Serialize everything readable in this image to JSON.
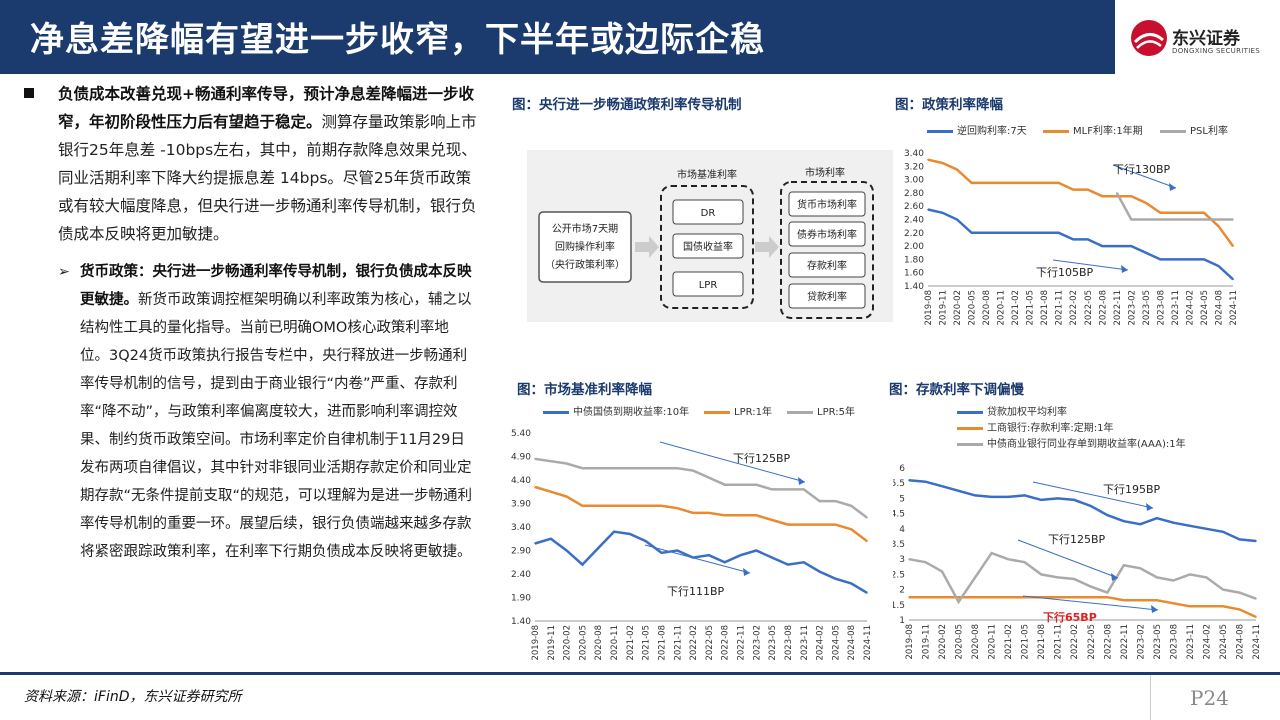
{
  "header": {
    "title": "净息差降幅有望进一步收窄，下半年或边际企稳",
    "logo_cn": "东兴证券",
    "logo_en": "DONGXING SECURITIES"
  },
  "left": {
    "bullet_bold": "负债成本改善兑现+畅通利率传导，预计净息差降幅进一步收窄，年初阶段性压力后有望趋于稳定。",
    "bullet_rest": "测算存量政策影响上市银行25年息差 -10bps左右，其中，前期存款降息效果兑现、同业活期利率下降大约提振息差 14bps。尽管25年货币政策或有较大幅度降息，但央行进一步畅通利率传导机制，银行负债成本反映将更加敏捷。",
    "sub_marker": "➢",
    "sub_bold": "货币政策：央行进一步畅通利率传导机制，银行负债成本反映更敏捷。",
    "sub_rest": "新货币政策调控框架明确以利率政策为核心，辅之以结构性工具的量化指导。当前已明确OMO核心政策利率地位。3Q24货币政策执行报告专栏中，央行释放进一步畅通利率传导机制的信号，提到由于商业银行“内卷”严重、存款利率“降不动”，与政策利率偏离度较大，进而影响利率调控效果、制约货币政策空间。市场利率定价自律机制于11月29日发布两项自律倡议，其中针对非银同业活期存款定价和同业定期存款“无条件提前支取“的规范，可以理解为是进一步畅通利率传导机制的重要一环。展望后续，银行负债端越来越多存款将紧密跟踪政策利率，在利率下行期负债成本反映将更敏捷。"
  },
  "diagram": {
    "title": "图：央行进一步畅通政策利率传导机制",
    "source_lines": [
      "公开市场7天期",
      "回购操作利率",
      "（央行政策利率）"
    ],
    "group1_label": "市场基准利率",
    "group1_items": [
      "DR",
      "国债收益率",
      "LPR"
    ],
    "group2_label": "市场利率",
    "group2_items": [
      "货币市场利率",
      "债券市场利率",
      "存款利率",
      "贷款利率"
    ]
  },
  "charts": {
    "c1": {
      "title": "图：政策利率降幅",
      "legend": [
        "逆回购利率:7天",
        "MLF利率:1年期",
        "PSL利率"
      ],
      "colors": [
        "#3a6fc8",
        "#e88a2f",
        "#aaaaaa"
      ],
      "annot": [
        "下行130BP",
        "下行105BP"
      ],
      "yticks": [
        "3.40",
        "3.20",
        "3.00",
        "2.80",
        "2.60",
        "2.40",
        "2.20",
        "2.00",
        "1.80",
        "1.60",
        "1.40"
      ]
    },
    "c2": {
      "title": "图：市场基准利率降幅",
      "legend": [
        "中债国债到期收益率:10年",
        "LPR:1年",
        "LPR:5年"
      ],
      "colors": [
        "#3a6fc8",
        "#e88a2f",
        "#aaaaaa"
      ],
      "annot": [
        "下行125BP",
        "下行111BP"
      ],
      "yticks": [
        "5.40",
        "4.90",
        "4.40",
        "3.90",
        "3.40",
        "2.90",
        "2.40",
        "1.90",
        "1.40"
      ]
    },
    "c3": {
      "title": "图：存款利率下调偏慢",
      "legend": [
        "贷款加权平均利率",
        "工商银行:存款利率:定期:1年",
        "中债商业银行同业存单到期收益率(AAA):1年"
      ],
      "colors": [
        "#3a6fc8",
        "#e88a2f",
        "#aaaaaa"
      ],
      "annot": [
        "下行195BP",
        "下行125BP",
        "下行65BP"
      ],
      "yticks": [
        "6",
        "5.5",
        "5",
        "4.5",
        "4",
        "3.5",
        "3",
        "2.5",
        "2",
        "1.5",
        "1"
      ]
    },
    "xticks": [
      "2019-08",
      "2019-11",
      "2020-02",
      "2020-05",
      "2020-08",
      "2020-11",
      "2021-02",
      "2021-05",
      "2021-08",
      "2021-11",
      "2022-02",
      "2022-05",
      "2022-08",
      "2022-11",
      "2023-02",
      "2023-05",
      "2023-08",
      "2023-11",
      "2024-02",
      "2024-05",
      "2024-08",
      "2024-11"
    ]
  },
  "chart_data": [
    {
      "type": "line",
      "title": "图：政策利率降幅",
      "ylim": [
        1.4,
        3.4
      ],
      "x": [
        "2019-08",
        "2019-11",
        "2020-02",
        "2020-05",
        "2020-08",
        "2020-11",
        "2021-02",
        "2021-05",
        "2021-08",
        "2021-11",
        "2022-02",
        "2022-05",
        "2022-08",
        "2022-11",
        "2023-02",
        "2023-05",
        "2023-08",
        "2023-11",
        "2024-02",
        "2024-05",
        "2024-08",
        "2024-11"
      ],
      "series": [
        {
          "name": "逆回购利率:7天",
          "values": [
            2.55,
            2.5,
            2.4,
            2.2,
            2.2,
            2.2,
            2.2,
            2.2,
            2.2,
            2.2,
            2.1,
            2.1,
            2.0,
            2.0,
            2.0,
            1.9,
            1.8,
            1.8,
            1.8,
            1.8,
            1.7,
            1.5
          ]
        },
        {
          "name": "MLF利率:1年期",
          "values": [
            3.3,
            3.25,
            3.15,
            2.95,
            2.95,
            2.95,
            2.95,
            2.95,
            2.95,
            2.95,
            2.85,
            2.85,
            2.75,
            2.75,
            2.75,
            2.65,
            2.5,
            2.5,
            2.5,
            2.5,
            2.3,
            2.0
          ]
        },
        {
          "name": "PSL利率",
          "values": [
            null,
            null,
            null,
            null,
            null,
            null,
            null,
            null,
            null,
            null,
            null,
            null,
            null,
            2.8,
            2.4,
            2.4,
            2.4,
            2.4,
            2.4,
            2.4,
            2.4,
            2.4
          ]
        }
      ]
    },
    {
      "type": "line",
      "title": "图：市场基准利率降幅",
      "ylim": [
        1.4,
        5.4
      ],
      "x": [
        "2019-08",
        "2019-11",
        "2020-02",
        "2020-05",
        "2020-08",
        "2020-11",
        "2021-02",
        "2021-05",
        "2021-08",
        "2021-11",
        "2022-02",
        "2022-05",
        "2022-08",
        "2022-11",
        "2023-02",
        "2023-05",
        "2023-08",
        "2023-11",
        "2024-02",
        "2024-05",
        "2024-08",
        "2024-11"
      ],
      "series": [
        {
          "name": "中债国债到期收益率:10年",
          "values": [
            3.05,
            3.15,
            2.9,
            2.6,
            2.95,
            3.3,
            3.25,
            3.1,
            2.85,
            2.9,
            2.75,
            2.8,
            2.65,
            2.8,
            2.9,
            2.75,
            2.6,
            2.65,
            2.45,
            2.3,
            2.2,
            2.0
          ]
        },
        {
          "name": "LPR:1年",
          "values": [
            4.25,
            4.15,
            4.05,
            3.85,
            3.85,
            3.85,
            3.85,
            3.85,
            3.85,
            3.8,
            3.7,
            3.7,
            3.65,
            3.65,
            3.65,
            3.55,
            3.45,
            3.45,
            3.45,
            3.45,
            3.35,
            3.1
          ]
        },
        {
          "name": "LPR:5年",
          "values": [
            4.85,
            4.8,
            4.75,
            4.65,
            4.65,
            4.65,
            4.65,
            4.65,
            4.65,
            4.65,
            4.6,
            4.45,
            4.3,
            4.3,
            4.3,
            4.2,
            4.2,
            4.2,
            3.95,
            3.95,
            3.85,
            3.6
          ]
        }
      ]
    },
    {
      "type": "line",
      "title": "图：存款利率下调偏慢",
      "ylim": [
        1,
        6
      ],
      "x": [
        "2019-08",
        "2019-11",
        "2020-02",
        "2020-05",
        "2020-08",
        "2020-11",
        "2021-02",
        "2021-05",
        "2021-08",
        "2021-11",
        "2022-02",
        "2022-05",
        "2022-08",
        "2022-11",
        "2023-02",
        "2023-05",
        "2023-08",
        "2023-11",
        "2024-02",
        "2024-05",
        "2024-08",
        "2024-11"
      ],
      "series": [
        {
          "name": "贷款加权平均利率",
          "values": [
            5.6,
            5.55,
            5.4,
            5.25,
            5.1,
            5.05,
            5.05,
            5.1,
            4.95,
            5.0,
            4.95,
            4.75,
            4.45,
            4.25,
            4.15,
            4.35,
            4.2,
            4.1,
            4.0,
            3.9,
            3.65,
            3.6
          ]
        },
        {
          "name": "工商银行:存款利率:定期:1年",
          "values": [
            1.75,
            1.75,
            1.75,
            1.75,
            1.75,
            1.75,
            1.75,
            1.75,
            1.75,
            1.75,
            1.75,
            1.75,
            1.75,
            1.65,
            1.65,
            1.65,
            1.55,
            1.45,
            1.45,
            1.45,
            1.35,
            1.1
          ]
        },
        {
          "name": "中债商业银行同业存单到期收益率(AAA):1年",
          "values": [
            3.0,
            2.9,
            2.6,
            1.6,
            2.4,
            3.2,
            3.0,
            2.9,
            2.5,
            2.4,
            2.35,
            2.1,
            1.9,
            2.8,
            2.7,
            2.4,
            2.3,
            2.5,
            2.4,
            2.0,
            1.9,
            1.7
          ]
        }
      ]
    }
  ],
  "footer": {
    "source": "资料来源：iFinD，东兴证券研究所",
    "page": "P24"
  }
}
